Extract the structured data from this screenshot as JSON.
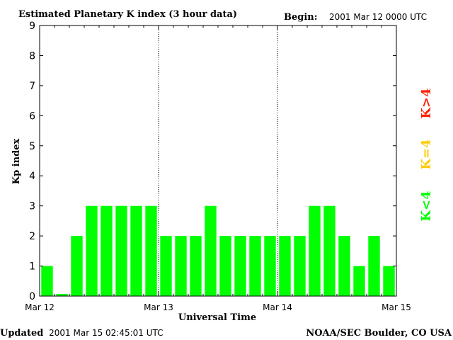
{
  "header": {
    "title": "Estimated Planetary K index (3 hour data)",
    "begin_label": "Begin:",
    "begin_value": "2001 Mar 12 0000 UTC"
  },
  "footer": {
    "updated_label": "Updated",
    "updated_value": "2001 Mar 15 02:45:01 UTC",
    "source": "NOAA/SEC Boulder, CO USA"
  },
  "legend": {
    "items": [
      {
        "label": "K>4",
        "color": "#ff2200"
      },
      {
        "label": "K=4",
        "color": "#ffcc00"
      },
      {
        "label": "K<4",
        "color": "#00ff00"
      }
    ]
  },
  "chart_data": {
    "type": "bar",
    "xlabel": "Universal Time",
    "ylabel": "Kp index",
    "ylim": [
      0,
      9
    ],
    "yticks": [
      "0",
      "1",
      "2",
      "3",
      "4",
      "5",
      "6",
      "7",
      "8",
      "9"
    ],
    "xticks": [
      "Mar 12",
      "Mar 13",
      "Mar 14",
      "Mar 15"
    ],
    "day_separators": true,
    "bar_color": "#00ff00",
    "values": [
      1,
      0.07,
      2,
      3,
      3,
      3,
      3,
      3,
      2,
      2,
      2,
      3,
      2,
      2,
      2,
      2,
      2,
      2,
      3,
      3,
      2,
      1,
      2,
      1
    ]
  }
}
